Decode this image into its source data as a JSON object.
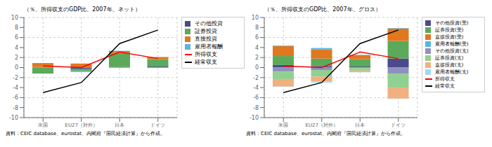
{
  "chart_data": [
    {
      "type": "bar",
      "title": "（％、所得収支のGDP比、2007年、ネット）",
      "categories": [
        "米国",
        "EU27（対外）",
        "日本",
        "ドイツ"
      ],
      "series": [
        {
          "name": "その他投資",
          "color": "#4a4a8c",
          "values": [
            0.1,
            -0.3,
            0.1,
            0.2
          ]
        },
        {
          "name": "証券投資",
          "color": "#5aaa5a",
          "values": [
            -1.2,
            -0.4,
            2.8,
            1.5
          ]
        },
        {
          "name": "直接投資",
          "color": "#e07820",
          "values": [
            0.8,
            0.8,
            0.4,
            0.4
          ]
        },
        {
          "name": "雇用者報酬",
          "color": "#5ab5e0",
          "values": [
            0.0,
            -0.2,
            0.05,
            0.0
          ]
        },
        {
          "name": "所得収支",
          "type": "line",
          "color": "red",
          "values": [
            0.3,
            0.0,
            3.1,
            1.8
          ]
        },
        {
          "name": "経常収支",
          "type": "line",
          "color": "black",
          "values": [
            -5.0,
            -3.0,
            4.8,
            7.5
          ]
        }
      ],
      "stacked": true,
      "ylim": [
        -10,
        10
      ],
      "yticks": [
        -10,
        -8,
        -6,
        -4,
        -2,
        0,
        2,
        4,
        6,
        8,
        10
      ],
      "grid": true,
      "legend": "right",
      "annotations": [
        "資料：CEIC database、eurostat、内閣府『国民経済計算』から作成。"
      ]
    },
    {
      "type": "bar",
      "title": "（％、所得収支のGDP比、2007年、グロス）",
      "categories": [
        "米国",
        "EU27（対外）",
        "日本",
        "ドイツ"
      ],
      "series": [
        {
          "name": "その他投資(受)",
          "color": "#4a4a8c",
          "values": [
            0.5,
            0.3,
            0.2,
            1.8
          ]
        },
        {
          "name": "証券投資(受)",
          "color": "#5aaa5a",
          "values": [
            1.8,
            1.5,
            1.5,
            3.5
          ]
        },
        {
          "name": "直接投資(受)",
          "color": "#e07820",
          "values": [
            2.0,
            1.8,
            0.8,
            2.5
          ]
        },
        {
          "name": "雇用者報酬(受)",
          "color": "#5ab5e0",
          "values": [
            0.1,
            0.3,
            0.05,
            0.1
          ]
        },
        {
          "name": "その他投資(支)",
          "color": "#9090c0",
          "values": [
            -0.8,
            -0.5,
            -0.1,
            -1.2
          ]
        },
        {
          "name": "証券投資(支)",
          "color": "#90d090",
          "values": [
            -1.5,
            -1.3,
            -0.5,
            -2.8
          ]
        },
        {
          "name": "直接投資(支)",
          "color": "#f0b080",
          "values": [
            -1.5,
            -1.0,
            -0.3,
            -2.2
          ]
        },
        {
          "name": "雇用者報酬(支)",
          "color": "#a0d8f0",
          "values": [
            -0.05,
            -0.2,
            -0.05,
            -0.05
          ]
        },
        {
          "name": "所得収支",
          "type": "line",
          "color": "red",
          "values": [
            0.3,
            0.0,
            3.1,
            1.8
          ]
        },
        {
          "name": "経常収支",
          "type": "line",
          "color": "black",
          "values": [
            -5.0,
            -3.0,
            4.8,
            7.5
          ]
        }
      ],
      "stacked": true,
      "ylim": [
        -10,
        10
      ],
      "yticks": [
        -10,
        -8,
        -6,
        -4,
        -2,
        0,
        2,
        4,
        6,
        8,
        10
      ],
      "grid": true,
      "legend": "right",
      "annotations": [
        "資料：CEIC database、eurostat、内閣府『国民経済計算』から作成。"
      ]
    }
  ]
}
